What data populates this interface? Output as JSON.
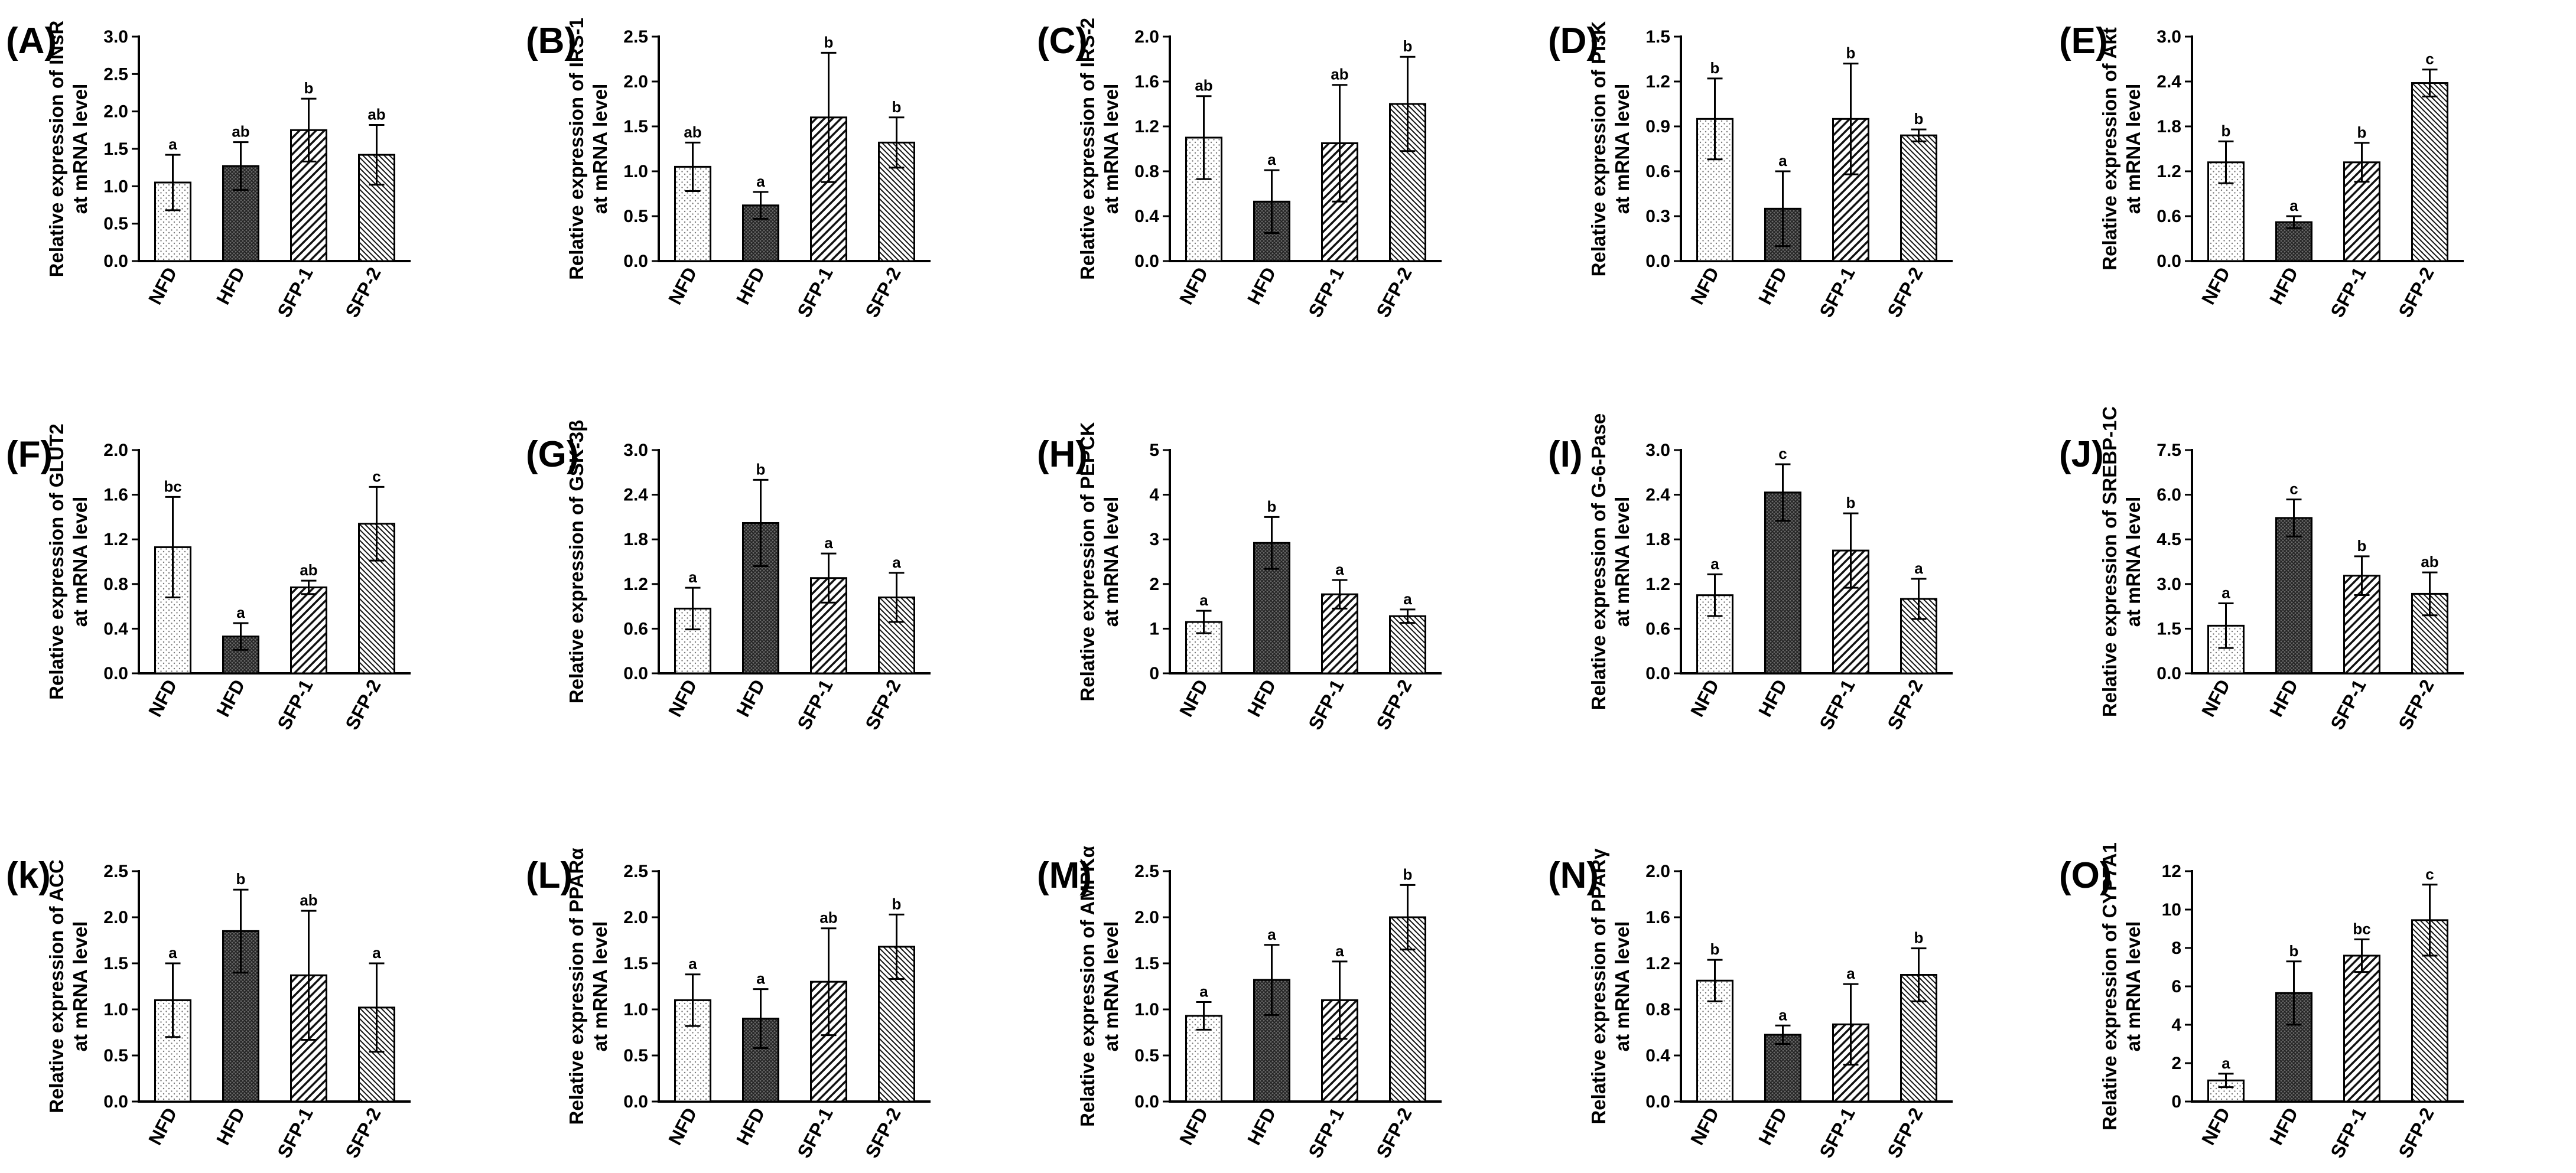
{
  "chart_data": [
    {
      "type": "bar",
      "label": "(A)",
      "ylabel": "Relative expression of INsR",
      "ylabel2": "at mRNA level",
      "categories": [
        "NFD",
        "HFD",
        "SFP-1",
        "SFP-2"
      ],
      "ylim": [
        0,
        3.0
      ],
      "yticks": [
        "0.0",
        "0.5",
        "1.0",
        "1.5",
        "2.0",
        "2.5",
        "3.0"
      ],
      "values": [
        1.05,
        1.27,
        1.75,
        1.42
      ],
      "errors": [
        0.37,
        0.32,
        0.42,
        0.4
      ],
      "sig": [
        "a",
        "ab",
        "b",
        "ab"
      ]
    },
    {
      "type": "bar",
      "label": "(B)",
      "ylabel": "Relative expression of IRS-1",
      "ylabel2": "at mRNA level",
      "categories": [
        "NFD",
        "HFD",
        "SFP-1",
        "SFP-2"
      ],
      "ylim": [
        0,
        2.5
      ],
      "yticks": [
        "0.0",
        "0.5",
        "1.0",
        "1.5",
        "2.0",
        "2.5"
      ],
      "values": [
        1.05,
        0.62,
        1.6,
        1.32
      ],
      "errors": [
        0.27,
        0.15,
        0.72,
        0.28
      ],
      "sig": [
        "ab",
        "a",
        "b",
        "b"
      ]
    },
    {
      "type": "bar",
      "label": "(C)",
      "ylabel": "Relative expression of IRS-2",
      "ylabel2": "at mRNA level",
      "categories": [
        "NFD",
        "HFD",
        "SFP-1",
        "SFP-2"
      ],
      "ylim": [
        0,
        2.0
      ],
      "yticks": [
        "0.0",
        "0.4",
        "0.8",
        "1.2",
        "1.6",
        "2.0"
      ],
      "values": [
        1.1,
        0.53,
        1.05,
        1.4
      ],
      "errors": [
        0.37,
        0.28,
        0.52,
        0.42
      ],
      "sig": [
        "ab",
        "a",
        "ab",
        "b"
      ]
    },
    {
      "type": "bar",
      "label": "(D)",
      "ylabel": "Relative expression of PI3K",
      "ylabel2": "at mRNA level",
      "categories": [
        "NFD",
        "HFD",
        "SFP-1",
        "SFP-2"
      ],
      "ylim": [
        0,
        1.5
      ],
      "yticks": [
        "0.0",
        "0.3",
        "0.6",
        "0.9",
        "1.2",
        "1.5"
      ],
      "values": [
        0.95,
        0.35,
        0.95,
        0.84
      ],
      "errors": [
        0.27,
        0.25,
        0.37,
        0.04
      ],
      "sig": [
        "b",
        "a",
        "b",
        "b"
      ]
    },
    {
      "type": "bar",
      "label": "(E)",
      "ylabel": "Relative expression of Akt",
      "ylabel2": "at mRNA level",
      "categories": [
        "NFD",
        "HFD",
        "SFP-1",
        "SFP-2"
      ],
      "ylim": [
        0,
        3.0
      ],
      "yticks": [
        "0.0",
        "0.6",
        "1.2",
        "1.8",
        "2.4",
        "3.0"
      ],
      "values": [
        1.32,
        0.52,
        1.32,
        2.38
      ],
      "errors": [
        0.28,
        0.08,
        0.26,
        0.18
      ],
      "sig": [
        "b",
        "a",
        "b",
        "c"
      ]
    },
    {
      "type": "bar",
      "label": "(F)",
      "ylabel": "Relative expression of GLUT2",
      "ylabel2": "at mRNA level",
      "categories": [
        "NFD",
        "HFD",
        "SFP-1",
        "SFP-2"
      ],
      "ylim": [
        0,
        2.0
      ],
      "yticks": [
        "0.0",
        "0.4",
        "0.8",
        "1.2",
        "1.6",
        "2.0"
      ],
      "values": [
        1.13,
        0.33,
        0.77,
        1.34
      ],
      "errors": [
        0.45,
        0.12,
        0.06,
        0.33
      ],
      "sig": [
        "bc",
        "a",
        "ab",
        "c"
      ]
    },
    {
      "type": "bar",
      "label": "(G)",
      "ylabel": "Relative expression of GSK-3β",
      "ylabel2": "",
      "categories": [
        "NFD",
        "HFD",
        "SFP-1",
        "SFP-2"
      ],
      "ylim": [
        0,
        3.0
      ],
      "yticks": [
        "0.0",
        "0.6",
        "1.2",
        "1.8",
        "2.4",
        "3.0"
      ],
      "values": [
        0.87,
        2.02,
        1.28,
        1.02
      ],
      "errors": [
        0.28,
        0.58,
        0.33,
        0.33
      ],
      "sig": [
        "a",
        "b",
        "a",
        "a"
      ]
    },
    {
      "type": "bar",
      "label": "(H)",
      "ylabel": "Relative expression of PEPCK",
      "ylabel2": "at mRNA level",
      "categories": [
        "NFD",
        "HFD",
        "SFP-1",
        "SFP-2"
      ],
      "ylim": [
        0,
        5
      ],
      "yticks": [
        "0",
        "1",
        "2",
        "3",
        "4",
        "5"
      ],
      "values": [
        1.15,
        2.92,
        1.77,
        1.28
      ],
      "errors": [
        0.25,
        0.58,
        0.32,
        0.15
      ],
      "sig": [
        "a",
        "b",
        "a",
        "a"
      ]
    },
    {
      "type": "bar",
      "label": "(I)",
      "ylabel": "Relative expression of G-6-Pase",
      "ylabel2": "at mRNA level",
      "categories": [
        "NFD",
        "HFD",
        "SFP-1",
        "SFP-2"
      ],
      "ylim": [
        0,
        3.0
      ],
      "yticks": [
        "0.0",
        "0.6",
        "1.2",
        "1.8",
        "2.4",
        "3.0"
      ],
      "values": [
        1.05,
        2.43,
        1.65,
        1.0
      ],
      "errors": [
        0.28,
        0.38,
        0.5,
        0.27
      ],
      "sig": [
        "a",
        "c",
        "b",
        "a"
      ]
    },
    {
      "type": "bar",
      "label": "(J)",
      "ylabel": "Relative expression of SREBP-1C",
      "ylabel2": "at mRNA level",
      "categories": [
        "NFD",
        "HFD",
        "SFP-1",
        "SFP-2"
      ],
      "ylim": [
        0,
        7.5
      ],
      "yticks": [
        "0.0",
        "1.5",
        "3.0",
        "4.5",
        "6.0",
        "7.5"
      ],
      "values": [
        1.6,
        5.22,
        3.28,
        2.67
      ],
      "errors": [
        0.75,
        0.62,
        0.65,
        0.72
      ],
      "sig": [
        "a",
        "c",
        "b",
        "ab"
      ]
    },
    {
      "type": "bar",
      "label": "(k)",
      "ylabel": "Relative expression of ACC",
      "ylabel2": "at mRNA level",
      "categories": [
        "NFD",
        "HFD",
        "SFP-1",
        "SFP-2"
      ],
      "ylim": [
        0,
        2.5
      ],
      "yticks": [
        "0.0",
        "0.5",
        "1.0",
        "1.5",
        "2.0",
        "2.5"
      ],
      "values": [
        1.1,
        1.85,
        1.37,
        1.02
      ],
      "errors": [
        0.4,
        0.45,
        0.7,
        0.48
      ],
      "sig": [
        "a",
        "b",
        "ab",
        "a"
      ]
    },
    {
      "type": "bar",
      "label": "(L)",
      "ylabel": "Relative expression of PPARα",
      "ylabel2": "at mRNA level",
      "categories": [
        "NFD",
        "HFD",
        "SFP-1",
        "SFP-2"
      ],
      "ylim": [
        0,
        2.5
      ],
      "yticks": [
        "0.0",
        "0.5",
        "1.0",
        "1.5",
        "2.0",
        "2.5"
      ],
      "values": [
        1.1,
        0.9,
        1.3,
        1.68
      ],
      "errors": [
        0.28,
        0.32,
        0.58,
        0.35
      ],
      "sig": [
        "a",
        "a",
        "ab",
        "b"
      ]
    },
    {
      "type": "bar",
      "label": "(M)",
      "ylabel": "Relative expression of AMPKα",
      "ylabel2": "at mRNA level",
      "categories": [
        "NFD",
        "HFD",
        "SFP-1",
        "SFP-2"
      ],
      "ylim": [
        0,
        2.5
      ],
      "yticks": [
        "0.0",
        "0.5",
        "1.0",
        "1.5",
        "2.0",
        "2.5"
      ],
      "values": [
        0.93,
        1.32,
        1.1,
        2.0
      ],
      "errors": [
        0.15,
        0.38,
        0.42,
        0.35
      ],
      "sig": [
        "a",
        "a",
        "a",
        "b"
      ]
    },
    {
      "type": "bar",
      "label": "(N)",
      "ylabel": "Relative expression of PPARγ",
      "ylabel2": "at mRNA level",
      "categories": [
        "NFD",
        "HFD",
        "SFP-1",
        "SFP-2"
      ],
      "ylim": [
        0,
        2.0
      ],
      "yticks": [
        "0.0",
        "0.4",
        "0.8",
        "1.2",
        "1.6",
        "2.0"
      ],
      "values": [
        1.05,
        0.58,
        0.67,
        1.1
      ],
      "errors": [
        0.18,
        0.08,
        0.35,
        0.23
      ],
      "sig": [
        "b",
        "a",
        "a",
        "b"
      ]
    },
    {
      "type": "bar",
      "label": "(O)",
      "ylabel": "Relative expression of CYP7A1",
      "ylabel2": "at mRNA level",
      "categories": [
        "NFD",
        "HFD",
        "SFP-1",
        "SFP-2"
      ],
      "ylim": [
        0,
        12
      ],
      "yticks": [
        "0",
        "2",
        "4",
        "6",
        "8",
        "10",
        "12"
      ],
      "values": [
        1.1,
        5.65,
        7.6,
        9.45
      ],
      "errors": [
        0.35,
        1.65,
        0.85,
        1.85
      ],
      "sig": [
        "a",
        "b",
        "bc",
        "c"
      ]
    }
  ]
}
